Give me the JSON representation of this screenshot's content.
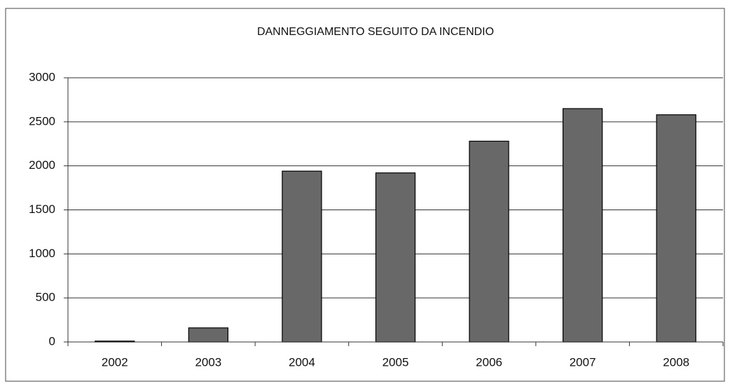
{
  "chart_data": {
    "type": "bar",
    "title": "DANNEGGIAMENTO SEGUITO DA INCENDIO",
    "categories": [
      "2002",
      "2003",
      "2004",
      "2005",
      "2006",
      "2007",
      "2008"
    ],
    "values": [
      10,
      160,
      1940,
      1920,
      2280,
      2650,
      2580
    ],
    "color": "#686868",
    "ylim": [
      0,
      3000
    ],
    "yticks": [
      0,
      500,
      1000,
      1500,
      2000,
      2500,
      3000
    ],
    "grid": true
  }
}
